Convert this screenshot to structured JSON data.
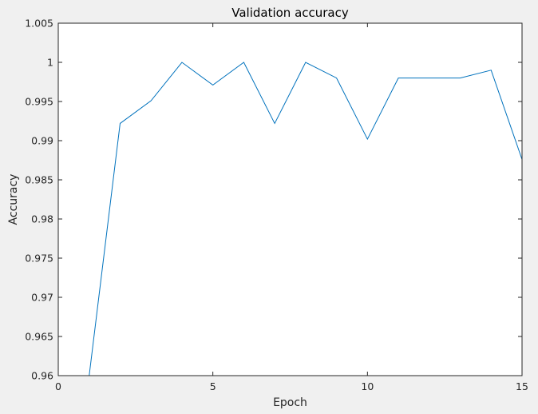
{
  "chart_data": {
    "type": "line",
    "title": "Validation accuracy",
    "xlabel": "Epoch",
    "ylabel": "Accuracy",
    "xlim": [
      0,
      15
    ],
    "ylim": [
      0.96,
      1.005
    ],
    "xticks": [
      0,
      5,
      10,
      15
    ],
    "xtick_labels": [
      "0",
      "5",
      "10",
      "15"
    ],
    "yticks": [
      0.96,
      0.965,
      0.97,
      0.975,
      0.98,
      0.985,
      0.99,
      0.995,
      1,
      1.005
    ],
    "ytick_labels": [
      "0.96",
      "0.965",
      "0.97",
      "0.975",
      "0.98",
      "0.985",
      "0.99",
      "0.995",
      "1",
      "1.005"
    ],
    "grid": false,
    "line_color": "#0072bd",
    "series": [
      {
        "x": [
          1,
          2,
          3,
          4,
          5,
          6,
          7,
          8,
          9,
          10,
          11,
          12,
          13,
          14,
          15
        ],
        "y": [
          0.96,
          0.9922,
          0.9951,
          1.0,
          0.9971,
          1.0,
          0.9922,
          1.0,
          0.998,
          0.9902,
          0.998,
          0.998,
          0.998,
          0.999,
          0.9876
        ]
      }
    ]
  }
}
